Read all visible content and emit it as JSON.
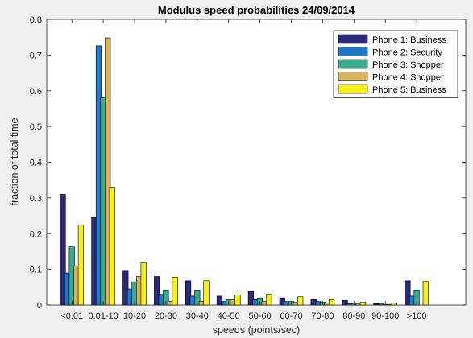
{
  "chart_data": {
    "type": "bar",
    "title": "Modulus speed probabilities 24/09/2014",
    "xlabel": "speeds (points/sec)",
    "ylabel": "fraction of total time",
    "ylim": [
      0,
      0.8
    ],
    "yticks": [
      "0",
      "0.1",
      "0.2",
      "0.3",
      "0.4",
      "0.5",
      "0.6",
      "0.7",
      "0.8"
    ],
    "categories": [
      "<0.01",
      "0.01-10",
      "10-20",
      "20-30",
      "30-40",
      "40-50",
      "50-60",
      "60-70",
      "70-80",
      "80-90",
      "90-100",
      ">100"
    ],
    "legend_position": "top-right",
    "grid": false,
    "series": [
      {
        "name": "Phone 1: Business",
        "color": "#2b2a7a",
        "values": [
          0.31,
          0.245,
          0.095,
          0.08,
          0.068,
          0.025,
          0.038,
          0.02,
          0.015,
          0.013,
          0.004,
          0.068
        ]
      },
      {
        "name": "Phone 2: Security",
        "color": "#1f78c8",
        "values": [
          0.09,
          0.726,
          0.045,
          0.03,
          0.025,
          0.01,
          0.015,
          0.01,
          0.01,
          0.004,
          0.003,
          0.025
        ]
      },
      {
        "name": "Phone 3: Shopper",
        "color": "#3aab8c",
        "values": [
          0.163,
          0.58,
          0.065,
          0.042,
          0.042,
          0.015,
          0.02,
          0.01,
          0.008,
          0.003,
          0.002,
          0.042
        ]
      },
      {
        "name": "Phone 4: Shopper",
        "color": "#d7b45f",
        "values": [
          0.11,
          0.748,
          0.08,
          0.01,
          0.01,
          0.015,
          0.01,
          0.008,
          0.006,
          0.003,
          0.002,
          0.0
        ]
      },
      {
        "name": "Phone 5: Business",
        "color": "#f7f01c",
        "values": [
          0.224,
          0.33,
          0.118,
          0.078,
          0.068,
          0.028,
          0.03,
          0.023,
          0.015,
          0.008,
          0.005,
          0.066
        ]
      }
    ]
  }
}
